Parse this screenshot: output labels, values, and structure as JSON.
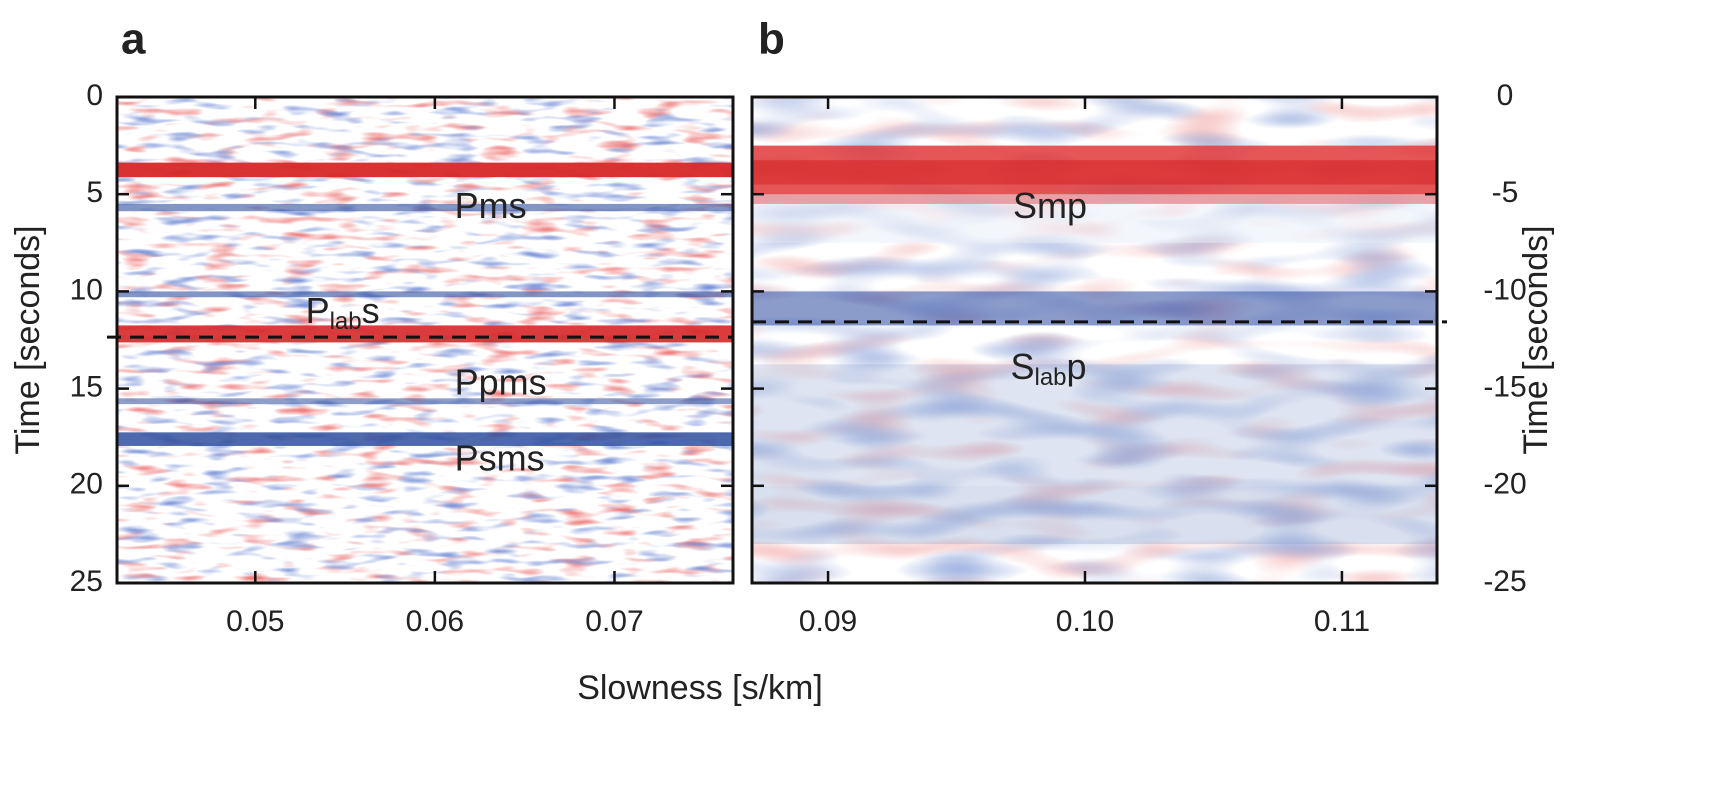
{
  "xlabel": "Slowness [s/km]",
  "chart_data": [
    {
      "type": "heatmap",
      "panel_label": "a",
      "ylabel": "Time [seconds]",
      "y_axis_side": "left",
      "y_inverted": true,
      "xlim": [
        0.0423,
        0.0766
      ],
      "xticks": [
        {
          "value": 0.05,
          "label": "0.05"
        },
        {
          "value": 0.06,
          "label": "0.06"
        },
        {
          "value": 0.07,
          "label": "0.07"
        }
      ],
      "ylim": [
        0,
        25
      ],
      "yticks": [
        0,
        5,
        10,
        15,
        20,
        25
      ],
      "reference_line": 12.35,
      "annotations": [
        {
          "parts": [
            "Pms"
          ],
          "x": 0.0611,
          "y": 5.7
        },
        {
          "parts": [
            "P",
            "lab",
            "s"
          ],
          "x": 0.0528,
          "y": 11.1
        },
        {
          "parts": [
            "Ppms"
          ],
          "x": 0.0611,
          "y": 14.8
        },
        {
          "parts": [
            "Psms"
          ],
          "x": 0.0611,
          "y": 18.7
        }
      ]
    },
    {
      "type": "heatmap",
      "panel_label": "b",
      "ylabel": "Time [seconds]",
      "y_axis_side": "right",
      "y_inverted": false,
      "xlim": [
        0.08704,
        0.1137
      ],
      "xticks": [
        {
          "value": 0.09,
          "label": "0.09"
        },
        {
          "value": 0.1,
          "label": "0.10"
        },
        {
          "value": 0.11,
          "label": "0.11"
        }
      ],
      "ylim": [
        -25,
        0
      ],
      "yticks": [
        0,
        -5,
        -10,
        -15,
        -20,
        -25
      ],
      "reference_line": -11.57,
      "annotations": [
        {
          "parts": [
            "Smp"
          ],
          "x": 0.0972,
          "y": -5.7
        },
        {
          "parts": [
            "S",
            "lab",
            "p"
          ],
          "x": 0.0971,
          "y": -14.0
        }
      ]
    }
  ]
}
